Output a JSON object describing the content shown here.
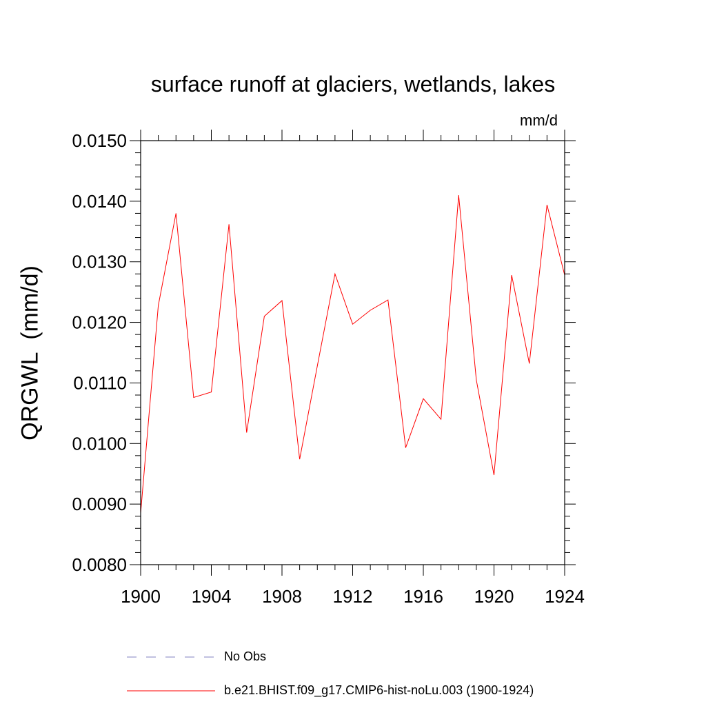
{
  "chart_data": {
    "type": "line",
    "title": "surface runoff at glaciers, wetlands, lakes",
    "units_label": "mm/d",
    "ylabel": "QRGWL  (mm/d)",
    "xlabel": "",
    "xlim": [
      1900,
      1924
    ],
    "ylim": [
      0.008,
      0.015
    ],
    "x_ticks": [
      "1900",
      "1904",
      "1908",
      "1912",
      "1916",
      "1920",
      "1924"
    ],
    "y_ticks": [
      "0.0080",
      "0.0090",
      "0.0100",
      "0.0110",
      "0.0120",
      "0.0130",
      "0.0140",
      "0.0150"
    ],
    "grid": false,
    "legend_position": "bottom",
    "series": [
      {
        "name": "No Obs",
        "style": "dashed",
        "color": "#8080c0",
        "x": [],
        "values": []
      },
      {
        "name": "b.e21.BHIST.f09_g17.CMIP6-hist-noLu.003 (1900-1924)",
        "style": "solid",
        "color": "#ff0000",
        "x": [
          1900,
          1901,
          1902,
          1903,
          1904,
          1905,
          1906,
          1907,
          1908,
          1909,
          1910,
          1911,
          1912,
          1913,
          1914,
          1915,
          1916,
          1917,
          1918,
          1919,
          1920,
          1921,
          1922,
          1923,
          1924
        ],
        "values": [
          0.00885,
          0.01228,
          0.0138,
          0.01076,
          0.01085,
          0.01362,
          0.01018,
          0.0121,
          0.01236,
          0.00974,
          0.01128,
          0.0128,
          0.01197,
          0.0122,
          0.01237,
          0.00993,
          0.01074,
          0.0104,
          0.0141,
          0.01105,
          0.00948,
          0.01278,
          0.01132,
          0.01394,
          0.01278
        ]
      }
    ]
  }
}
